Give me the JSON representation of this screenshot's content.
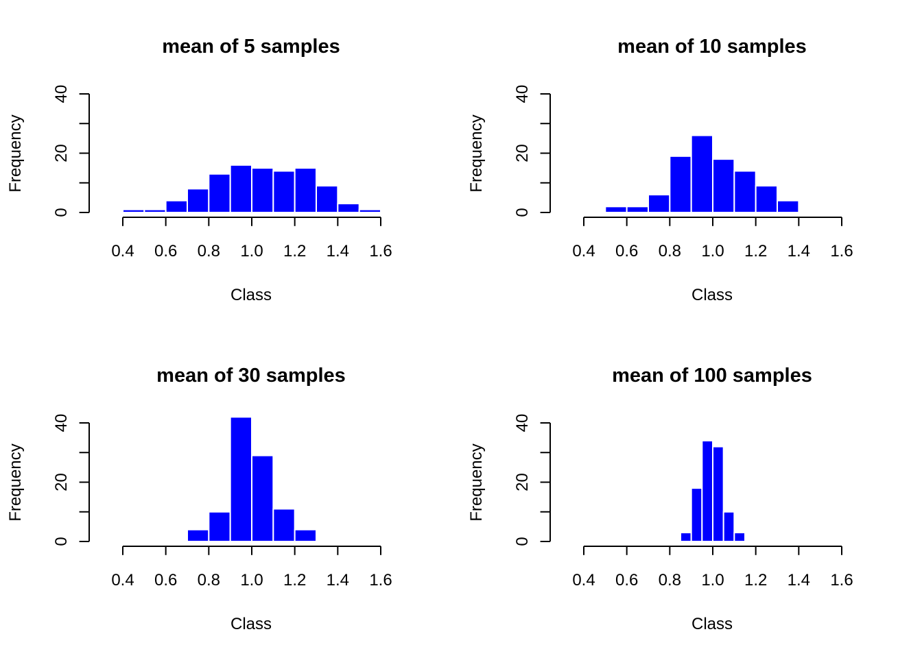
{
  "chart_data": [
    {
      "type": "bar",
      "title": "mean of 5 samples",
      "xlabel": "Class",
      "ylabel": "Frequency",
      "xlim": [
        0.4,
        1.6
      ],
      "ylim": [
        0,
        40
      ],
      "x_ticks": [
        "0.4",
        "0.6",
        "0.8",
        "1.0",
        "1.2",
        "1.4",
        "1.6"
      ],
      "y_ticks": [
        "0",
        "20",
        "40"
      ],
      "bar_color": "#0000ff",
      "bins": [
        {
          "from": 0.4,
          "to": 0.5,
          "count": 1
        },
        {
          "from": 0.5,
          "to": 0.6,
          "count": 1
        },
        {
          "from": 0.6,
          "to": 0.7,
          "count": 4
        },
        {
          "from": 0.7,
          "to": 0.8,
          "count": 8
        },
        {
          "from": 0.8,
          "to": 0.9,
          "count": 13
        },
        {
          "from": 0.9,
          "to": 1.0,
          "count": 16
        },
        {
          "from": 1.0,
          "to": 1.1,
          "count": 15
        },
        {
          "from": 1.1,
          "to": 1.2,
          "count": 14
        },
        {
          "from": 1.2,
          "to": 1.3,
          "count": 15
        },
        {
          "from": 1.3,
          "to": 1.4,
          "count": 9
        },
        {
          "from": 1.4,
          "to": 1.5,
          "count": 3
        },
        {
          "from": 1.5,
          "to": 1.6,
          "count": 1
        }
      ]
    },
    {
      "type": "bar",
      "title": "mean of 10 samples",
      "xlabel": "Class",
      "ylabel": "Frequency",
      "xlim": [
        0.4,
        1.6
      ],
      "ylim": [
        0,
        40
      ],
      "x_ticks": [
        "0.4",
        "0.6",
        "0.8",
        "1.0",
        "1.2",
        "1.4",
        "1.6"
      ],
      "y_ticks": [
        "0",
        "20",
        "40"
      ],
      "bar_color": "#0000ff",
      "bins": [
        {
          "from": 0.5,
          "to": 0.6,
          "count": 2
        },
        {
          "from": 0.6,
          "to": 0.7,
          "count": 2
        },
        {
          "from": 0.7,
          "to": 0.8,
          "count": 6
        },
        {
          "from": 0.8,
          "to": 0.9,
          "count": 19
        },
        {
          "from": 0.9,
          "to": 1.0,
          "count": 26
        },
        {
          "from": 1.0,
          "to": 1.1,
          "count": 18
        },
        {
          "from": 1.1,
          "to": 1.2,
          "count": 14
        },
        {
          "from": 1.2,
          "to": 1.3,
          "count": 9
        },
        {
          "from": 1.3,
          "to": 1.4,
          "count": 4
        }
      ]
    },
    {
      "type": "bar",
      "title": "mean of 30 samples",
      "xlabel": "Class",
      "ylabel": "Frequency",
      "xlim": [
        0.4,
        1.6
      ],
      "ylim": [
        0,
        40
      ],
      "x_ticks": [
        "0.4",
        "0.6",
        "0.8",
        "1.0",
        "1.2",
        "1.4",
        "1.6"
      ],
      "y_ticks": [
        "0",
        "20",
        "40"
      ],
      "bar_color": "#0000ff",
      "bins": [
        {
          "from": 0.7,
          "to": 0.8,
          "count": 4
        },
        {
          "from": 0.8,
          "to": 0.9,
          "count": 10
        },
        {
          "from": 0.9,
          "to": 1.0,
          "count": 42
        },
        {
          "from": 1.0,
          "to": 1.1,
          "count": 29
        },
        {
          "from": 1.1,
          "to": 1.2,
          "count": 11
        },
        {
          "from": 1.2,
          "to": 1.3,
          "count": 4
        }
      ]
    },
    {
      "type": "bar",
      "title": "mean of 100 samples",
      "xlabel": "Class",
      "ylabel": "Frequency",
      "xlim": [
        0.4,
        1.6
      ],
      "ylim": [
        0,
        40
      ],
      "x_ticks": [
        "0.4",
        "0.6",
        "0.8",
        "1.0",
        "1.2",
        "1.4",
        "1.6"
      ],
      "y_ticks": [
        "0",
        "20",
        "40"
      ],
      "bar_color": "#0000ff",
      "bins": [
        {
          "from": 0.85,
          "to": 0.9,
          "count": 3
        },
        {
          "from": 0.9,
          "to": 0.95,
          "count": 18
        },
        {
          "from": 0.95,
          "to": 1.0,
          "count": 34
        },
        {
          "from": 1.0,
          "to": 1.05,
          "count": 32
        },
        {
          "from": 1.05,
          "to": 1.1,
          "count": 10
        },
        {
          "from": 1.1,
          "to": 1.15,
          "count": 3
        }
      ]
    }
  ]
}
